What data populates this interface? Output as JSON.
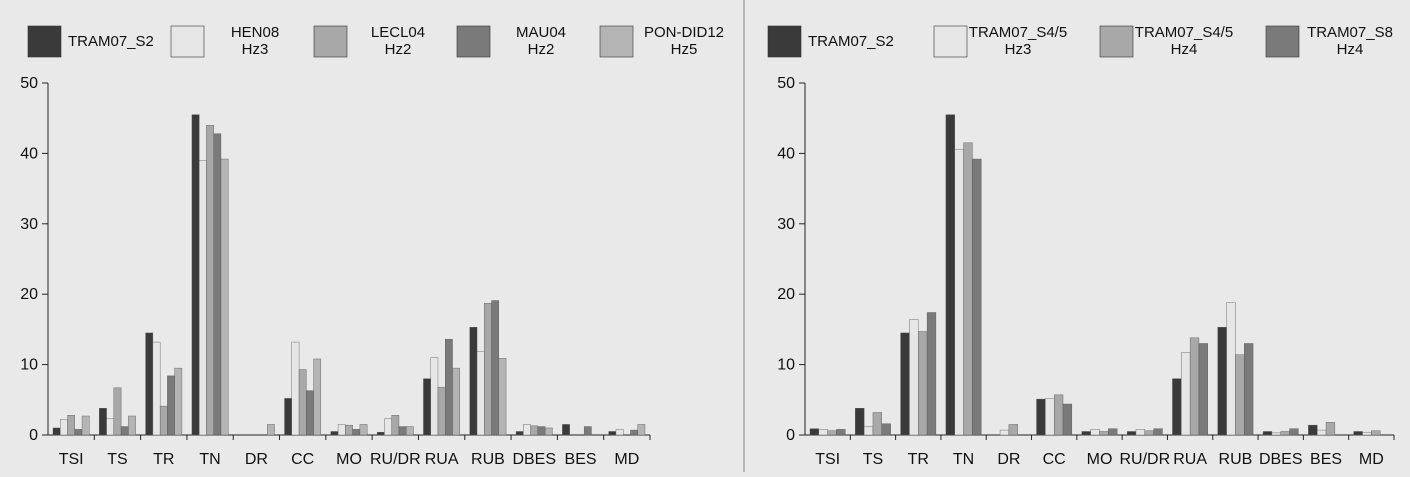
{
  "colors": {
    "TRAM07_S2": "#3a3a3a",
    "light": "#e6e6e6",
    "mid": "#a8a8a8",
    "dark_mid": "#7a7a7a",
    "mid_light": "#b4b4b4"
  },
  "chart_data": [
    {
      "type": "bar",
      "title": "",
      "xlabel": "",
      "ylabel": "",
      "ylim": [
        0,
        50
      ],
      "yticks": [
        0,
        10,
        20,
        30,
        40,
        50
      ],
      "grid": false,
      "legend_position": "top",
      "categories": [
        "TSI",
        "TS",
        "TR",
        "TN",
        "DR",
        "CC",
        "MO",
        "RU/DR",
        "RUA",
        "RUB",
        "DBES",
        "BES",
        "MD"
      ],
      "series": [
        {
          "name": "TRAM07_S2",
          "legend_lines": [
            "TRAM07_S2"
          ],
          "color": "#3a3a3a",
          "values": [
            1.0,
            3.8,
            14.5,
            45.5,
            0,
            5.2,
            0.5,
            0.4,
            8.0,
            15.3,
            0.5,
            1.5,
            0.5
          ]
        },
        {
          "name": "HEN08 Hz3",
          "legend_lines": [
            "HEN08",
            "Hz3"
          ],
          "color": "#e6e6e6",
          "values": [
            2.2,
            2.3,
            13.2,
            39.0,
            0,
            13.2,
            1.5,
            2.3,
            11.0,
            11.9,
            1.5,
            0,
            0.8
          ]
        },
        {
          "name": "LECL04 Hz2",
          "legend_lines": [
            "LECL04",
            "Hz2"
          ],
          "color": "#a8a8a8",
          "values": [
            2.8,
            6.7,
            4.1,
            44.0,
            0,
            9.3,
            1.4,
            2.8,
            6.8,
            18.7,
            1.3,
            0,
            0
          ]
        },
        {
          "name": "MAU04 Hz2",
          "legend_lines": [
            "MAU04",
            "Hz2"
          ],
          "color": "#7a7a7a",
          "values": [
            0.8,
            1.2,
            8.4,
            42.8,
            0,
            6.3,
            0.8,
            1.2,
            13.6,
            19.1,
            1.2,
            1.2,
            0.7
          ]
        },
        {
          "name": "PON-DID12 Hz5",
          "legend_lines": [
            "PON-DID12",
            "Hz5"
          ],
          "color": "#b4b4b4",
          "values": [
            2.7,
            2.7,
            9.5,
            39.2,
            1.5,
            10.8,
            1.5,
            1.2,
            9.5,
            10.9,
            1.0,
            0,
            1.5
          ]
        }
      ]
    },
    {
      "type": "bar",
      "title": "",
      "xlabel": "",
      "ylabel": "",
      "ylim": [
        0,
        50
      ],
      "yticks": [
        0,
        10,
        20,
        30,
        40,
        50
      ],
      "grid": false,
      "legend_position": "top",
      "categories": [
        "TSI",
        "TS",
        "TR",
        "TN",
        "DR",
        "CC",
        "MO",
        "RU/DR",
        "RUA",
        "RUB",
        "DBES",
        "BES",
        "MD"
      ],
      "series": [
        {
          "name": "TRAM07_S2",
          "legend_lines": [
            "TRAM07_S2"
          ],
          "color": "#3a3a3a",
          "values": [
            0.9,
            3.8,
            14.5,
            45.5,
            0,
            5.1,
            0.5,
            0.5,
            8.0,
            15.3,
            0.5,
            1.4,
            0.5
          ]
        },
        {
          "name": "TRAM07_S4/5 Hz3",
          "legend_lines": [
            "TRAM07_S4/5",
            "Hz3"
          ],
          "color": "#e6e6e6",
          "values": [
            0.8,
            1.2,
            16.4,
            40.6,
            0.7,
            5.2,
            0.8,
            0.8,
            11.7,
            18.8,
            0.3,
            0.7,
            0.4
          ]
        },
        {
          "name": "TRAM07_S4/5 Hz4",
          "legend_lines": [
            "TRAM07_S4/5",
            "Hz4"
          ],
          "color": "#a8a8a8",
          "values": [
            0.6,
            3.2,
            14.7,
            41.5,
            1.5,
            5.7,
            0.5,
            0.6,
            13.8,
            11.4,
            0.5,
            1.8,
            0.6
          ]
        },
        {
          "name": "TRAM07_S8 Hz4",
          "legend_lines": [
            "TRAM07_S8",
            "Hz4"
          ],
          "color": "#7a7a7a",
          "values": [
            0.8,
            1.6,
            17.4,
            39.2,
            0,
            4.4,
            0.9,
            0.9,
            13.0,
            13.0,
            0.9,
            0,
            0
          ]
        }
      ]
    }
  ]
}
